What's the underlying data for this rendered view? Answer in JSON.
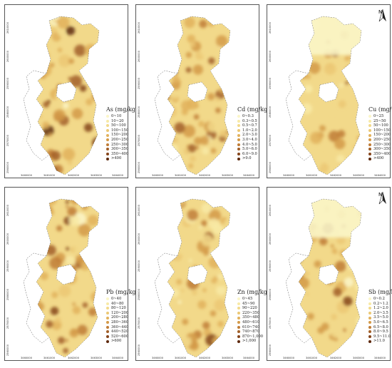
{
  "unit": "(mg/kg)",
  "x_ticks": [
    "3460000",
    "3461000",
    "3462000",
    "3463000",
    "3464000"
  ],
  "y_ticks": [
    "2610000",
    "2600000",
    "2590000",
    "2580000",
    "2570000",
    "2560000"
  ],
  "north_label": "N",
  "panels": [
    {
      "element": "As",
      "classes": [
        "0~10",
        "10~20",
        "50~100",
        "100~150",
        "150~200",
        "200~250",
        "250~300",
        "300~350",
        "350~400",
        ">400"
      ],
      "colors": [
        "#fbf6c8",
        "#f8eaa6",
        "#f2d98a",
        "#ecc874",
        "#e2b25c",
        "#d49a48",
        "#c07c36",
        "#a25f28",
        "#85441a",
        "#5e2a0e"
      ]
    },
    {
      "element": "Cd",
      "classes": [
        "0~0.3",
        "0.3~0.5",
        "0.5~0.7",
        "1.0~2.0",
        "2.0~3.0",
        "3.0~4.0",
        "4.0~5.0",
        "5.0~6.0",
        "6.0~9.0",
        ">9.0"
      ],
      "colors": [
        "#fbf6c8",
        "#f8eaa6",
        "#f2d98a",
        "#ecc874",
        "#e2b25c",
        "#d49a48",
        "#c07c36",
        "#a25f28",
        "#85441a",
        "#5e2a0e"
      ]
    },
    {
      "element": "Cu",
      "classes": [
        "0~25",
        "25~50",
        "50~100",
        "100~150",
        "150~200",
        "200~250",
        "250~300",
        "300~350",
        "350~400",
        ">400"
      ],
      "colors": [
        "#fbf6c8",
        "#f8eaa6",
        "#f2d98a",
        "#ecc874",
        "#e2b25c",
        "#d49a48",
        "#c07c36",
        "#a25f28",
        "#85441a",
        "#5e2a0e"
      ]
    },
    {
      "element": "Pb",
      "classes": [
        "0~40",
        "40~80",
        "80~120",
        "120~200",
        "200~280",
        "280~360",
        "360~440",
        "440~520",
        "520~600",
        ">600"
      ],
      "colors": [
        "#fbf6c8",
        "#f8eaa6",
        "#f2d98a",
        "#ecc874",
        "#e2b25c",
        "#d49a48",
        "#c07c36",
        "#a25f28",
        "#85441a",
        "#5e2a0e"
      ]
    },
    {
      "element": "Zn",
      "classes": [
        "0~45",
        "45~90",
        "90~220",
        "220~350",
        "350~480",
        "480~610",
        "610~740",
        "740~870",
        "870~1,000",
        ">1,000"
      ],
      "colors": [
        "#fbf6c8",
        "#f8eaa6",
        "#f2d98a",
        "#ecc874",
        "#e2b25c",
        "#d49a48",
        "#c07c36",
        "#a25f28",
        "#85441a",
        "#5e2a0e"
      ]
    },
    {
      "element": "Sb",
      "classes": [
        "0~0.2",
        "0.2~1.2",
        "1.2~2.0",
        "2.0~3.5",
        "3.5~5.0",
        "5.0~6.5",
        "6.5~8.0",
        "8.0~9.5",
        "9.5~11.0",
        ">11.0"
      ],
      "colors": [
        "#fbf6c8",
        "#f8eaa6",
        "#f2d98a",
        "#ecc874",
        "#e2b25c",
        "#d49a48",
        "#c07c36",
        "#a25f28",
        "#85441a",
        "#5e2a0e"
      ]
    }
  ]
}
